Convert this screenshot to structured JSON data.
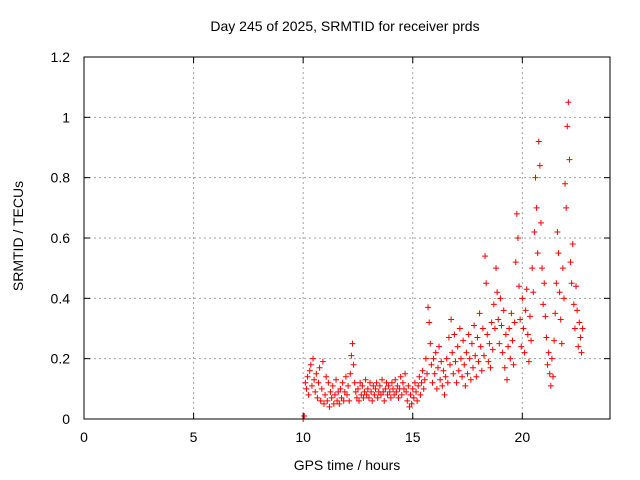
{
  "chart_data": {
    "type": "scatter",
    "title": "Day 245 of 2025, SRMTID for receiver prds",
    "xlabel": "GPS time / hours",
    "ylabel": "SRMTID / TECUs",
    "xlim": [
      0,
      24
    ],
    "ylim": [
      0,
      1.2
    ],
    "xticks": [
      0,
      5,
      10,
      15,
      20
    ],
    "xtick_labels": [
      "0",
      "5",
      "10",
      "15",
      "20"
    ],
    "yticks": [
      0,
      0.2,
      0.4,
      0.6,
      0.8,
      1.0,
      1.2
    ],
    "ytick_labels": [
      "0",
      "0.2",
      "0.4",
      "0.6",
      "0.8",
      "1",
      "1.2"
    ],
    "grid": true,
    "marker": "plus",
    "series": [
      {
        "name": "SRMTID",
        "color": "#ff0000",
        "points": [
          [
            10.0,
            0.0
          ],
          [
            10.05,
            0.01
          ],
          [
            10.1,
            0.12
          ],
          [
            10.15,
            0.1
          ],
          [
            10.2,
            0.14
          ],
          [
            10.25,
            0.08
          ],
          [
            10.3,
            0.16
          ],
          [
            10.35,
            0.18
          ],
          [
            10.4,
            0.11
          ],
          [
            10.45,
            0.2
          ],
          [
            10.5,
            0.13
          ],
          [
            10.55,
            0.09
          ],
          [
            10.6,
            0.15
          ],
          [
            10.65,
            0.07
          ],
          [
            10.7,
            0.12
          ],
          [
            10.75,
            0.17
          ],
          [
            10.8,
            0.06
          ],
          [
            10.85,
            0.1
          ],
          [
            10.9,
            0.19
          ],
          [
            10.95,
            0.05
          ],
          [
            11.0,
            0.08
          ],
          [
            11.05,
            0.14
          ],
          [
            11.1,
            0.06
          ],
          [
            11.15,
            0.12
          ],
          [
            11.2,
            0.04
          ],
          [
            11.25,
            0.09
          ],
          [
            11.3,
            0.07
          ],
          [
            11.35,
            0.11
          ],
          [
            11.4,
            0.05
          ],
          [
            11.45,
            0.08
          ],
          [
            11.5,
            0.13
          ],
          [
            11.55,
            0.06
          ],
          [
            11.6,
            0.09
          ],
          [
            11.65,
            0.05
          ],
          [
            11.7,
            0.1
          ],
          [
            11.75,
            0.07
          ],
          [
            11.8,
            0.12
          ],
          [
            11.85,
            0.06
          ],
          [
            11.9,
            0.09
          ],
          [
            11.95,
            0.14
          ],
          [
            12.0,
            0.08
          ],
          [
            12.05,
            0.11
          ],
          [
            12.1,
            0.06
          ],
          [
            12.15,
            0.15
          ],
          [
            12.2,
            0.21
          ],
          [
            12.25,
            0.25
          ],
          [
            12.3,
            0.18
          ],
          [
            12.35,
            0.12
          ],
          [
            12.4,
            0.09
          ],
          [
            12.45,
            0.07
          ],
          [
            12.5,
            0.1
          ],
          [
            12.55,
            0.06
          ],
          [
            12.6,
            0.12
          ],
          [
            12.65,
            0.08
          ],
          [
            12.7,
            0.11
          ],
          [
            12.75,
            0.07
          ],
          [
            12.8,
            0.09
          ],
          [
            12.85,
            0.13
          ],
          [
            12.9,
            0.08
          ],
          [
            12.95,
            0.1
          ],
          [
            13.0,
            0.07
          ],
          [
            13.05,
            0.12
          ],
          [
            13.1,
            0.09
          ],
          [
            13.15,
            0.06
          ],
          [
            13.2,
            0.11
          ],
          [
            13.25,
            0.08
          ],
          [
            13.3,
            0.1
          ],
          [
            13.35,
            0.12
          ],
          [
            13.4,
            0.07
          ],
          [
            13.45,
            0.09
          ],
          [
            13.5,
            0.11
          ],
          [
            13.55,
            0.08
          ],
          [
            13.6,
            0.13
          ],
          [
            13.65,
            0.09
          ],
          [
            13.7,
            0.06
          ],
          [
            13.75,
            0.1
          ],
          [
            13.8,
            0.12
          ],
          [
            13.85,
            0.08
          ],
          [
            13.9,
            0.11
          ],
          [
            13.95,
            0.09
          ],
          [
            14.0,
            0.07
          ],
          [
            14.05,
            0.12
          ],
          [
            14.1,
            0.1
          ],
          [
            14.15,
            0.08
          ],
          [
            14.2,
            0.13
          ],
          [
            14.25,
            0.09
          ],
          [
            14.3,
            0.11
          ],
          [
            14.35,
            0.07
          ],
          [
            14.4,
            0.1
          ],
          [
            14.45,
            0.14
          ],
          [
            14.5,
            0.08
          ],
          [
            14.55,
            0.12
          ],
          [
            14.6,
            0.1
          ],
          [
            14.65,
            0.15
          ],
          [
            14.7,
            0.09
          ],
          [
            14.75,
            0.06
          ],
          [
            14.8,
            0.11
          ],
          [
            14.85,
            0.04
          ],
          [
            14.9,
            0.08
          ],
          [
            14.95,
            0.05
          ],
          [
            15.0,
            0.1
          ],
          [
            15.05,
            0.07
          ],
          [
            15.1,
            0.12
          ],
          [
            15.15,
            0.09
          ],
          [
            15.2,
            0.06
          ],
          [
            15.25,
            0.11
          ],
          [
            15.3,
            0.14
          ],
          [
            15.35,
            0.08
          ],
          [
            15.4,
            0.12
          ],
          [
            15.45,
            0.16
          ],
          [
            15.5,
            0.1
          ],
          [
            15.55,
            0.13
          ],
          [
            15.6,
            0.2
          ],
          [
            15.65,
            0.15
          ],
          [
            15.7,
            0.37
          ],
          [
            15.75,
            0.32
          ],
          [
            15.8,
            0.25
          ],
          [
            15.85,
            0.18
          ],
          [
            15.9,
            0.12
          ],
          [
            15.95,
            0.2
          ],
          [
            16.0,
            0.15
          ],
          [
            16.05,
            0.22
          ],
          [
            16.1,
            0.1
          ],
          [
            16.15,
            0.17
          ],
          [
            16.2,
            0.24
          ],
          [
            16.25,
            0.13
          ],
          [
            16.3,
            0.19
          ],
          [
            16.35,
            0.11
          ],
          [
            16.4,
            0.16
          ],
          [
            16.45,
            0.08
          ],
          [
            16.5,
            0.14
          ],
          [
            16.55,
            0.2
          ],
          [
            16.6,
            0.12
          ],
          [
            16.65,
            0.27
          ],
          [
            16.7,
            0.18
          ],
          [
            16.75,
            0.33
          ],
          [
            16.8,
            0.22
          ],
          [
            16.85,
            0.15
          ],
          [
            16.9,
            0.28
          ],
          [
            16.95,
            0.19
          ],
          [
            17.0,
            0.12
          ],
          [
            17.05,
            0.24
          ],
          [
            17.1,
            0.16
          ],
          [
            17.15,
            0.3
          ],
          [
            17.2,
            0.2
          ],
          [
            17.25,
            0.14
          ],
          [
            17.3,
            0.26
          ],
          [
            17.35,
            0.18
          ],
          [
            17.4,
            0.11
          ],
          [
            17.45,
            0.22
          ],
          [
            17.5,
            0.15
          ],
          [
            17.55,
            0.28
          ],
          [
            17.6,
            0.2
          ],
          [
            17.65,
            0.13
          ],
          [
            17.7,
            0.25
          ],
          [
            17.75,
            0.17
          ],
          [
            17.8,
            0.31
          ],
          [
            17.85,
            0.21
          ],
          [
            17.9,
            0.14
          ],
          [
            17.95,
            0.27
          ],
          [
            18.0,
            0.19
          ],
          [
            18.05,
            0.35
          ],
          [
            18.1,
            0.24
          ],
          [
            18.15,
            0.16
          ],
          [
            18.2,
            0.3
          ],
          [
            18.25,
            0.21
          ],
          [
            18.3,
            0.54
          ],
          [
            18.35,
            0.45
          ],
          [
            18.4,
            0.28
          ],
          [
            18.45,
            0.19
          ],
          [
            18.5,
            0.25
          ],
          [
            18.55,
            0.17
          ],
          [
            18.6,
            0.32
          ],
          [
            18.65,
            0.23
          ],
          [
            18.7,
            0.38
          ],
          [
            18.75,
            0.3
          ],
          [
            18.8,
            0.5
          ],
          [
            18.85,
            0.42
          ],
          [
            18.9,
            0.33
          ],
          [
            18.95,
            0.25
          ],
          [
            19.0,
            0.4
          ],
          [
            19.05,
            0.31
          ],
          [
            19.1,
            0.22
          ],
          [
            19.15,
            0.36
          ],
          [
            19.2,
            0.17
          ],
          [
            19.25,
            0.28
          ],
          [
            19.3,
            0.13
          ],
          [
            19.35,
            0.24
          ],
          [
            19.4,
            0.3
          ],
          [
            19.45,
            0.2
          ],
          [
            19.5,
            0.35
          ],
          [
            19.55,
            0.26
          ],
          [
            19.6,
            0.18
          ],
          [
            19.65,
            0.32
          ],
          [
            19.7,
            0.52
          ],
          [
            19.75,
            0.68
          ],
          [
            19.8,
            0.6
          ],
          [
            19.85,
            0.44
          ],
          [
            19.9,
            0.33
          ],
          [
            19.95,
            0.24
          ],
          [
            20.0,
            0.4
          ],
          [
            20.05,
            0.3
          ],
          [
            20.1,
            0.22
          ],
          [
            20.15,
            0.36
          ],
          [
            20.2,
            0.43
          ],
          [
            20.25,
            0.28
          ],
          [
            20.3,
            0.19
          ],
          [
            20.35,
            0.34
          ],
          [
            20.4,
            0.26
          ],
          [
            20.45,
            0.5
          ],
          [
            20.5,
            0.42
          ],
          [
            20.55,
            0.62
          ],
          [
            20.6,
            0.8
          ],
          [
            20.65,
            0.7
          ],
          [
            20.7,
            0.55
          ],
          [
            20.75,
            0.92
          ],
          [
            20.8,
            0.84
          ],
          [
            20.85,
            0.65
          ],
          [
            20.9,
            0.5
          ],
          [
            20.95,
            0.38
          ],
          [
            21.0,
            0.45
          ],
          [
            21.05,
            0.34
          ],
          [
            21.1,
            0.27
          ],
          [
            21.15,
            0.18
          ],
          [
            21.2,
            0.22
          ],
          [
            21.25,
            0.15
          ],
          [
            21.3,
            0.11
          ],
          [
            21.35,
            0.2
          ],
          [
            21.4,
            0.14
          ],
          [
            21.45,
            0.26
          ],
          [
            21.5,
            0.35
          ],
          [
            21.55,
            0.45
          ],
          [
            21.6,
            0.62
          ],
          [
            21.65,
            0.55
          ],
          [
            21.7,
            0.42
          ],
          [
            21.75,
            0.33
          ],
          [
            21.8,
            0.25
          ],
          [
            21.85,
            0.5
          ],
          [
            21.9,
            0.4
          ],
          [
            21.95,
            0.78
          ],
          [
            22.0,
            0.7
          ],
          [
            22.05,
            0.97
          ],
          [
            22.1,
            1.05
          ],
          [
            22.15,
            0.86
          ],
          [
            22.2,
            0.52
          ],
          [
            22.25,
            0.45
          ],
          [
            22.3,
            0.58
          ],
          [
            22.35,
            0.38
          ],
          [
            22.4,
            0.3
          ],
          [
            22.45,
            0.44
          ],
          [
            22.5,
            0.36
          ],
          [
            22.55,
            0.24
          ],
          [
            22.6,
            0.32
          ],
          [
            22.65,
            0.27
          ],
          [
            22.7,
            0.22
          ],
          [
            22.75,
            0.3
          ]
        ]
      }
    ]
  }
}
